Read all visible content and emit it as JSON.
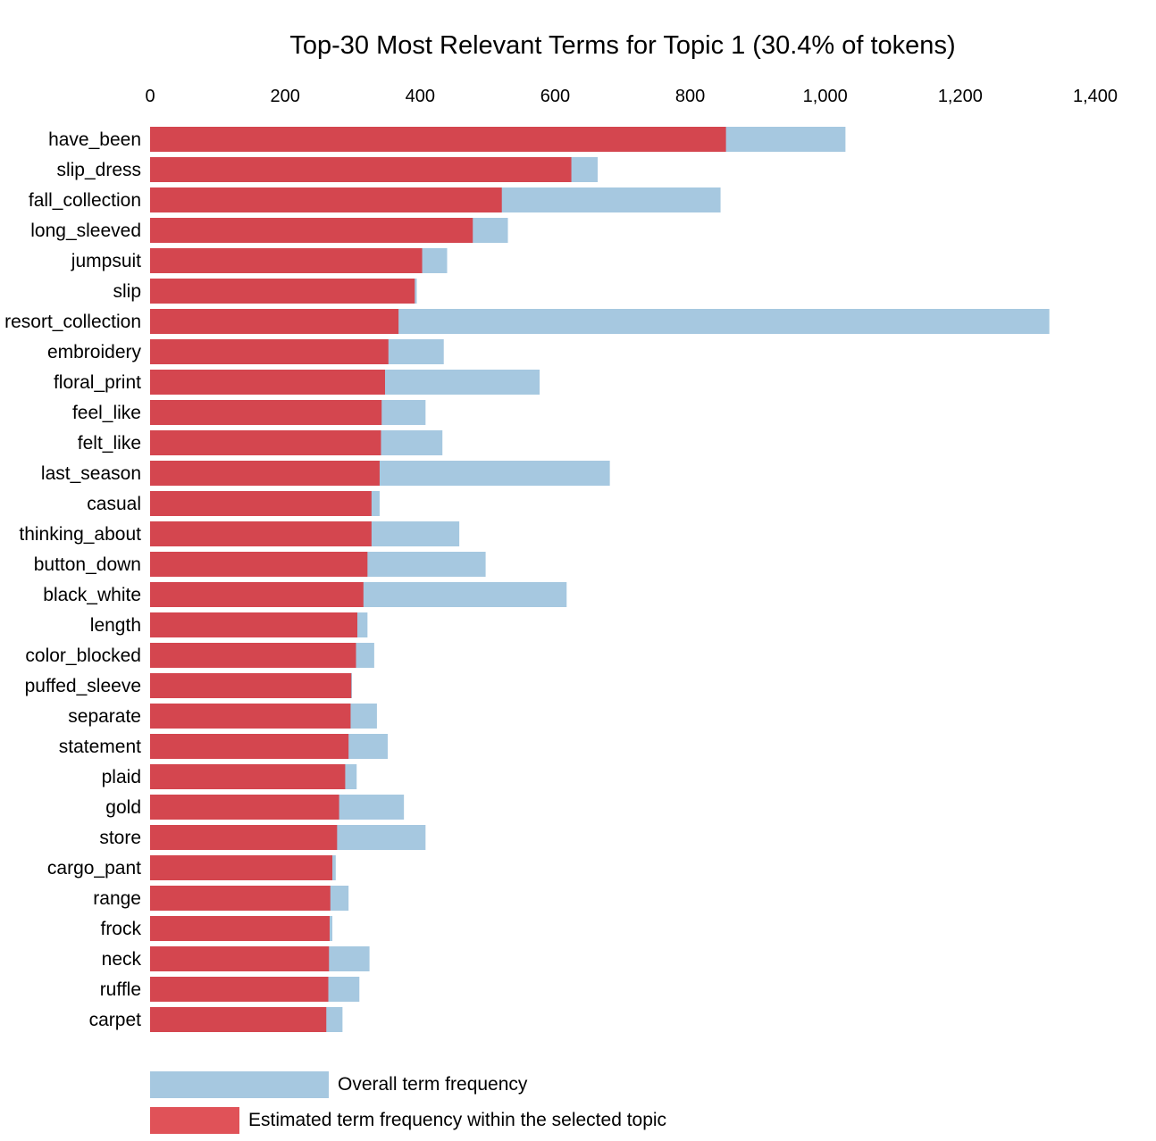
{
  "chart_data": {
    "type": "bar",
    "orientation": "horizontal",
    "title": "Top-30 Most Relevant Terms for Topic 1 (30.4% of tokens)",
    "x_axis": {
      "position": "top",
      "range": [
        0,
        1400
      ],
      "ticks": [
        0,
        200,
        400,
        600,
        800,
        1000,
        1200,
        1400
      ],
      "tick_labels": [
        "0",
        "200",
        "400",
        "600",
        "800",
        "1,000",
        "1,200",
        "1,400"
      ]
    },
    "grid": false,
    "legend_position": "bottom-left",
    "colors": {
      "overall": "#a6c8e0",
      "topic": "#d4464f",
      "topic_legend": "#e05258"
    },
    "categories": [
      "have_been",
      "slip_dress",
      "fall_collection",
      "long_sleeved",
      "jumpsuit",
      "slip",
      "resort_collection",
      "embroidery",
      "floral_print",
      "feel_like",
      "felt_like",
      "last_season",
      "casual",
      "thinking_about",
      "button_down",
      "black_white",
      "length",
      "color_blocked",
      "puffed_sleeve",
      "separate",
      "statement",
      "plaid",
      "gold",
      "store",
      "cargo_pant",
      "range",
      "frock",
      "neck",
      "ruffle",
      "carpet"
    ],
    "series": [
      {
        "name": "Overall term frequency",
        "key": "overall",
        "values": [
          1030,
          663,
          845,
          530,
          440,
          395,
          1332,
          435,
          577,
          408,
          433,
          681,
          340,
          458,
          497,
          617,
          322,
          332,
          299,
          336,
          352,
          306,
          376,
          408,
          275,
          294,
          270,
          325,
          310,
          285
        ]
      },
      {
        "name": "Estimated term frequency within the selected topic",
        "key": "topic",
        "values": [
          853,
          624,
          521,
          478,
          403,
          392,
          368,
          353,
          348,
          343,
          342,
          340,
          328,
          328,
          322,
          316,
          307,
          305,
          298,
          297,
          294,
          289,
          280,
          277,
          270,
          267,
          266,
          265,
          264,
          261
        ]
      }
    ]
  }
}
